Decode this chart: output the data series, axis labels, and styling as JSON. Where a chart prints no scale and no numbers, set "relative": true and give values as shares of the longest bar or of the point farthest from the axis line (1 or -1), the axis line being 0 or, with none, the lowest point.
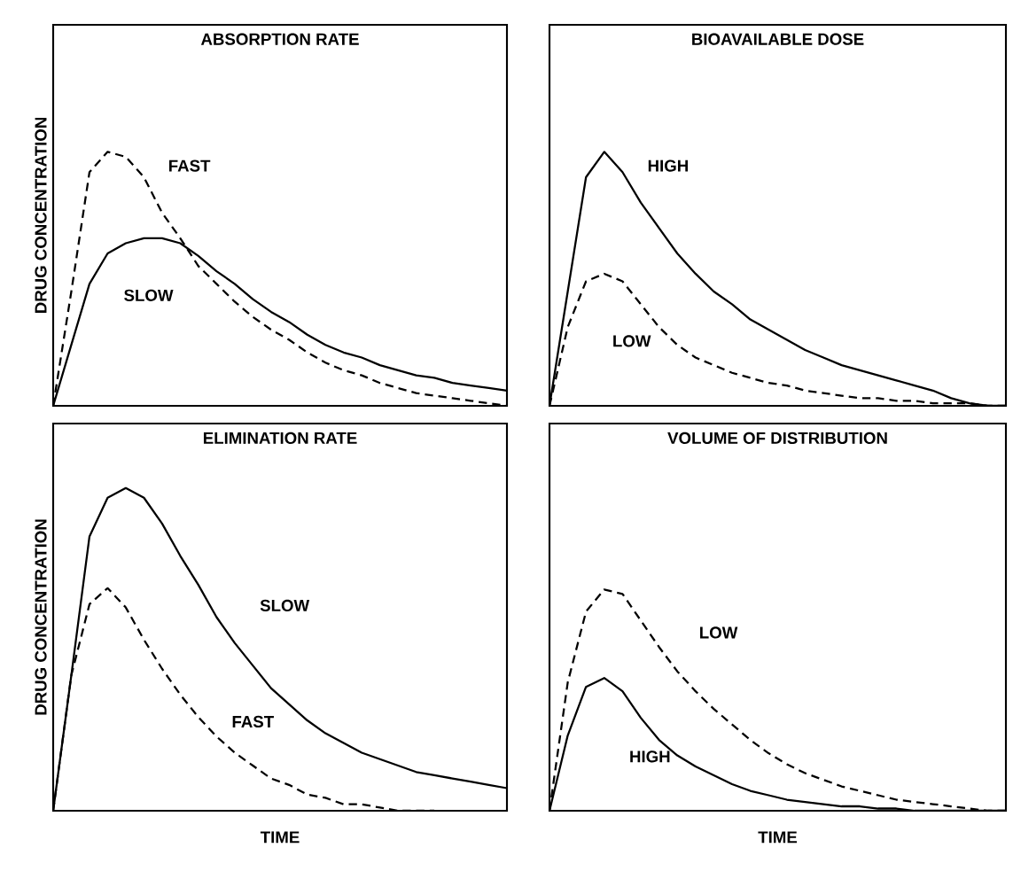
{
  "chart_data": [
    {
      "type": "line",
      "title": "ABSORPTION RATE",
      "ylabel": "DRUG CONCENTRATION",
      "relative": true,
      "tick_labels": false,
      "categories": [
        null,
        null,
        null,
        null,
        null,
        null,
        null,
        null,
        null,
        null,
        null,
        null,
        null,
        null,
        null,
        null,
        null,
        null,
        null,
        null,
        null,
        null,
        null,
        null,
        null,
        null
      ],
      "series": [
        {
          "name": "FAST",
          "color": "#000000",
          "line_style": "dashed",
          "values": [
            0,
            0.45,
            0.92,
            1.0,
            0.98,
            0.9,
            0.76,
            0.66,
            0.55,
            0.48,
            0.41,
            0.35,
            0.3,
            0.26,
            0.21,
            0.17,
            0.14,
            0.12,
            0.09,
            0.07,
            0.05,
            0.04,
            0.03,
            0.02,
            0.01,
            0
          ]
        },
        {
          "name": "SLOW",
          "color": "#000000",
          "line_style": "solid",
          "values": [
            0,
            0.24,
            0.48,
            0.6,
            0.64,
            0.66,
            0.66,
            0.64,
            0.59,
            0.53,
            0.48,
            0.42,
            0.37,
            0.33,
            0.28,
            0.24,
            0.21,
            0.19,
            0.16,
            0.14,
            0.12,
            0.11,
            0.09,
            0.08,
            0.07,
            0.06
          ]
        }
      ]
    },
    {
      "type": "line",
      "title": "BIOAVAILABLE DOSE",
      "relative": true,
      "tick_labels": false,
      "categories": [
        null,
        null,
        null,
        null,
        null,
        null,
        null,
        null,
        null,
        null,
        null,
        null,
        null,
        null,
        null,
        null,
        null,
        null,
        null,
        null,
        null,
        null,
        null,
        null,
        null,
        null
      ],
      "series": [
        {
          "name": "HIGH",
          "color": "#000000",
          "line_style": "solid",
          "values": [
            0,
            0.45,
            0.9,
            1.0,
            0.92,
            0.8,
            0.7,
            0.6,
            0.52,
            0.45,
            0.4,
            0.34,
            0.3,
            0.26,
            0.22,
            0.19,
            0.16,
            0.14,
            0.12,
            0.1,
            0.08,
            0.06,
            0.03,
            0.01,
            0,
            0
          ]
        },
        {
          "name": "LOW",
          "color": "#000000",
          "line_style": "dashed",
          "values": [
            0,
            0.31,
            0.49,
            0.52,
            0.49,
            0.4,
            0.31,
            0.24,
            0.19,
            0.16,
            0.13,
            0.11,
            0.09,
            0.08,
            0.06,
            0.05,
            0.04,
            0.03,
            0.03,
            0.02,
            0.02,
            0.01,
            0.01,
            0.01,
            0,
            0
          ]
        }
      ]
    },
    {
      "type": "line",
      "title": "ELIMINATION RATE",
      "ylabel": "DRUG CONCENTRATION",
      "xlabel": "TIME",
      "relative": true,
      "tick_labels": false,
      "categories": [
        null,
        null,
        null,
        null,
        null,
        null,
        null,
        null,
        null,
        null,
        null,
        null,
        null,
        null,
        null,
        null,
        null,
        null,
        null,
        null,
        null,
        null,
        null,
        null,
        null,
        null
      ],
      "series": [
        {
          "name": "SLOW",
          "color": "#000000",
          "line_style": "solid",
          "values": [
            0,
            0.42,
            0.85,
            0.97,
            1.0,
            0.97,
            0.89,
            0.79,
            0.7,
            0.6,
            0.52,
            0.45,
            0.38,
            0.33,
            0.28,
            0.24,
            0.21,
            0.18,
            0.16,
            0.14,
            0.12,
            0.11,
            0.1,
            0.09,
            0.08,
            0.07
          ]
        },
        {
          "name": "FAST",
          "color": "#000000",
          "line_style": "dashed",
          "values": [
            0,
            0.42,
            0.64,
            0.69,
            0.63,
            0.53,
            0.44,
            0.36,
            0.29,
            0.23,
            0.18,
            0.14,
            0.1,
            0.08,
            0.05,
            0.04,
            0.02,
            0.02,
            0.01,
            0,
            0,
            0,
            null,
            null,
            null,
            null
          ]
        }
      ]
    },
    {
      "type": "line",
      "title": "VOLUME OF DISTRIBUTION",
      "xlabel": "TIME",
      "relative": true,
      "tick_labels": false,
      "categories": [
        null,
        null,
        null,
        null,
        null,
        null,
        null,
        null,
        null,
        null,
        null,
        null,
        null,
        null,
        null,
        null,
        null,
        null,
        null,
        null,
        null,
        null,
        null,
        null,
        null,
        null
      ],
      "series": [
        {
          "name": "LOW",
          "color": "#000000",
          "line_style": "dashed",
          "values": [
            0,
            0.58,
            0.9,
            1.0,
            0.98,
            0.86,
            0.74,
            0.63,
            0.54,
            0.46,
            0.39,
            0.32,
            0.26,
            0.21,
            0.17,
            0.14,
            0.11,
            0.09,
            0.07,
            0.05,
            0.04,
            0.03,
            0.02,
            0.01,
            0,
            0
          ]
        },
        {
          "name": "HIGH",
          "color": "#000000",
          "line_style": "solid",
          "values": [
            0,
            0.34,
            0.56,
            0.6,
            0.54,
            0.42,
            0.32,
            0.25,
            0.2,
            0.16,
            0.12,
            0.09,
            0.07,
            0.05,
            0.04,
            0.03,
            0.02,
            0.02,
            0.01,
            0.01,
            0,
            0,
            0,
            0,
            0,
            0
          ]
        }
      ]
    }
  ]
}
